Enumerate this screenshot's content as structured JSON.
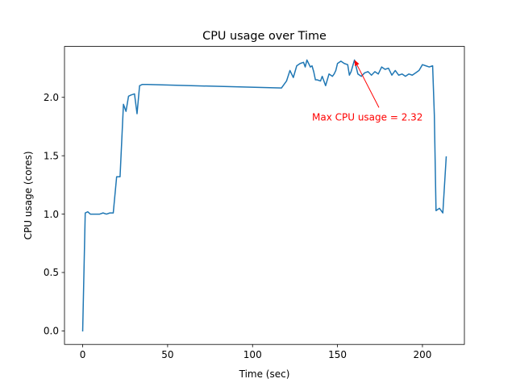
{
  "chart_data": {
    "type": "line",
    "title": "CPU usage over Time",
    "xlabel": "Time (sec)",
    "ylabel": "CPU usage (cores)",
    "xlim": [
      -10.7,
      224.7
    ],
    "ylim": [
      -0.116,
      2.436
    ],
    "xticks": [
      0,
      50,
      100,
      150,
      200
    ],
    "yticks": [
      0.0,
      0.5,
      1.0,
      1.5,
      2.0
    ],
    "xtick_labels": [
      "0",
      "50",
      "100",
      "150",
      "200"
    ],
    "ytick_labels": [
      "0.0",
      "0.5",
      "1.0",
      "1.5",
      "2.0"
    ],
    "grid": false,
    "series_color": "#1f77b4",
    "series": [
      {
        "name": "",
        "x": [
          0,
          1.5,
          3,
          4.5,
          6,
          8,
          10,
          12,
          14,
          16,
          18,
          20,
          22,
          24,
          25.5,
          27,
          28.5,
          30.5,
          32,
          33.5,
          35,
          38,
          117,
          120,
          122,
          124,
          126,
          128,
          130,
          131,
          132,
          134,
          135,
          136,
          137,
          138,
          140,
          141,
          142,
          143,
          145,
          147,
          148,
          149,
          150,
          152,
          154,
          156,
          157,
          158,
          160,
          162,
          164,
          166,
          168,
          170,
          172,
          174,
          176,
          178,
          180,
          182,
          184,
          186,
          188,
          190,
          192,
          194,
          196,
          198,
          200,
          202,
          204,
          206,
          207,
          208,
          210,
          212,
          214
        ],
        "values": [
          0.0,
          1.01,
          1.02,
          1.0,
          1.0,
          1.0,
          1.0,
          1.01,
          1.0,
          1.01,
          1.01,
          1.32,
          1.32,
          1.94,
          1.88,
          2.01,
          2.02,
          2.03,
          1.86,
          2.1,
          2.11,
          2.11,
          2.08,
          2.14,
          2.23,
          2.17,
          2.27,
          2.29,
          2.3,
          2.26,
          2.32,
          2.26,
          2.27,
          2.22,
          2.15,
          2.15,
          2.14,
          2.18,
          2.14,
          2.1,
          2.2,
          2.18,
          2.2,
          2.23,
          2.29,
          2.31,
          2.29,
          2.28,
          2.19,
          2.22,
          2.32,
          2.2,
          2.18,
          2.21,
          2.22,
          2.19,
          2.22,
          2.2,
          2.26,
          2.24,
          2.25,
          2.19,
          2.23,
          2.19,
          2.2,
          2.18,
          2.2,
          2.19,
          2.21,
          2.23,
          2.28,
          2.27,
          2.26,
          2.27,
          1.85,
          1.03,
          1.05,
          1.01,
          1.49
        ]
      }
    ],
    "annotation": {
      "text": "Max CPU usage = 2.32",
      "color": "#ff0000",
      "point": [
        160,
        2.32
      ],
      "text_at": [
        135,
        1.83
      ]
    }
  }
}
